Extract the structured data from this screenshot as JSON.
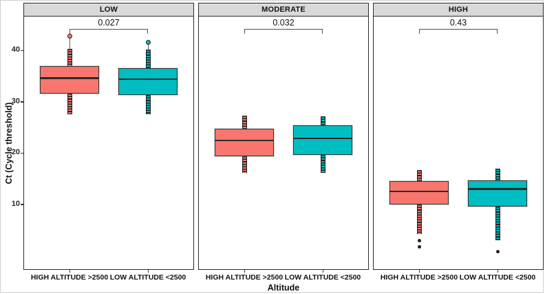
{
  "figure": {
    "y_axis": {
      "title": "Ct (Cycle threshold)",
      "ticks": [
        40,
        30,
        20,
        10
      ]
    },
    "x_axis": {
      "title": "Altitude",
      "categories": [
        "HIGH ALTITUDE >2500",
        "LOW ALTITUDE <2500"
      ]
    },
    "colors": {
      "high_altitude_fill": "#F8766D",
      "low_altitude_fill": "#00BDC1",
      "panel_header_bg": "#D9D9D9",
      "box_border": "#333333",
      "median_line": "#2B2B2B",
      "outlier_dark": "#1F1F1F"
    }
  },
  "chart_data": {
    "type": "boxplot",
    "facet_variable_values": [
      "LOW",
      "MODERATE",
      "HIGH"
    ],
    "ylim": [
      -2.5,
      46.6
    ],
    "ylabel": "Ct (Cycle threshold)",
    "xlabel": "Altitude",
    "grid": "off",
    "facets": [
      {
        "label": "LOW",
        "p_value": "0.027",
        "groups": [
          {
            "name": "HIGH ALTITUDE >2500",
            "color": "#F8766D",
            "whisker_low": 27.5,
            "q1": 31.6,
            "median": 34.6,
            "q3": 36.9,
            "whisker_high": 40.3,
            "outliers_high": [
              42.8
            ],
            "outliers_low": []
          },
          {
            "name": "LOW ALTITUDE <2500",
            "color": "#00BDC1",
            "whisker_low": 27.5,
            "q1": 31.3,
            "median": 34.4,
            "q3": 36.5,
            "whisker_high": 40.1,
            "outliers_high": [
              41.6
            ],
            "outliers_low": []
          }
        ]
      },
      {
        "label": "MODERATE",
        "p_value": "0.032",
        "groups": [
          {
            "name": "HIGH ALTITUDE >2500",
            "color": "#F8766D",
            "whisker_low": 16.1,
            "q1": 19.4,
            "median": 22.5,
            "q3": 24.7,
            "whisker_high": 27.3,
            "outliers_high": [],
            "outliers_low": []
          },
          {
            "name": "LOW ALTITUDE <2500",
            "color": "#00BDC1",
            "whisker_low": 16.1,
            "q1": 19.7,
            "median": 22.9,
            "q3": 25.4,
            "whisker_high": 27.2,
            "outliers_high": [],
            "outliers_low": []
          }
        ]
      },
      {
        "label": "HIGH",
        "p_value": "0.43",
        "groups": [
          {
            "name": "HIGH ALTITUDE >2500",
            "color": "#F8766D",
            "whisker_low": 4.2,
            "q1": 10.0,
            "median": 12.5,
            "q3": 14.5,
            "whisker_high": 16.7,
            "outliers_high": [],
            "outliers_low": [
              3.0,
              1.7
            ]
          },
          {
            "name": "LOW ALTITUDE <2500",
            "color": "#00BDC1",
            "whisker_low": 3.0,
            "q1": 9.6,
            "median": 13.0,
            "q3": 14.7,
            "whisker_high": 16.9,
            "outliers_high": [],
            "outliers_low": [
              0.8
            ]
          }
        ]
      }
    ]
  }
}
